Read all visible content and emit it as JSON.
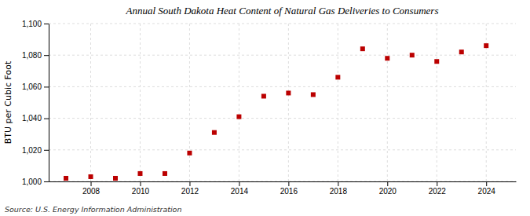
{
  "chart_data": {
    "type": "scatter",
    "title": "Annual South Dakota Heat Content of Natural Gas Deliveries to Consumers",
    "ylabel": "BTU per Cubic Foot",
    "annotations": [
      "Source: U.S. Energy Information Administration"
    ],
    "x": [
      2007,
      2008,
      2009,
      2010,
      2011,
      2012,
      2013,
      2014,
      2015,
      2016,
      2017,
      2018,
      2019,
      2020,
      2021,
      2022,
      2023,
      2024
    ],
    "values": [
      1002,
      1003,
      1002,
      1005,
      1005,
      1018,
      1031,
      1041,
      1054,
      1056,
      1055,
      1066,
      1084,
      1078,
      1080,
      1076,
      1082,
      1086
    ],
    "color": "#bb0000",
    "marker": "square",
    "xlim": [
      2006.3,
      2025.2
    ],
    "xticks": [
      2008,
      2010,
      2012,
      2014,
      2016,
      2018,
      2020,
      2022,
      2024
    ],
    "ylim": [
      1000,
      1100
    ],
    "yticks": [
      {
        "value": 1000,
        "label": "1,000"
      },
      {
        "value": 1020,
        "label": "1,020"
      },
      {
        "value": 1040,
        "label": "1,040"
      },
      {
        "value": 1060,
        "label": "1,060"
      },
      {
        "value": 1080,
        "label": "1,080"
      },
      {
        "value": 1100,
        "label": "1,100"
      }
    ],
    "grid": true
  }
}
